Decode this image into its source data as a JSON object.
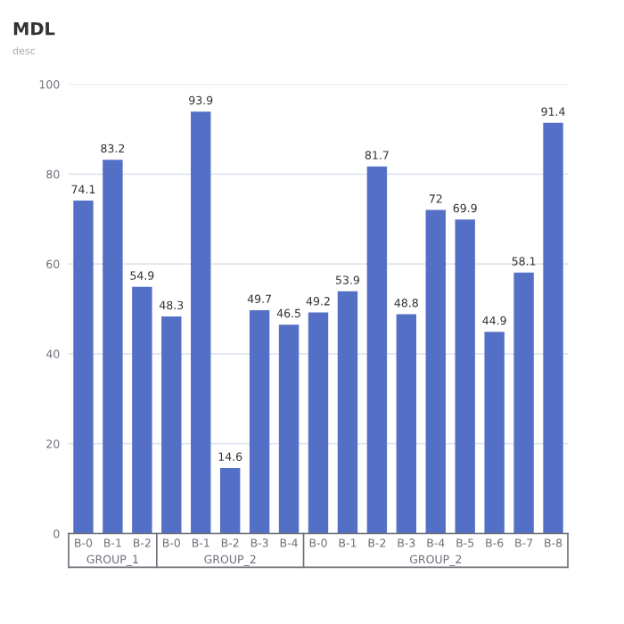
{
  "chart_data": {
    "type": "bar",
    "title": "MDL",
    "subtitle": "desc",
    "categories": [
      "B-0",
      "B-1",
      "B-2",
      "B-0",
      "B-1",
      "B-2",
      "B-3",
      "B-4",
      "B-0",
      "B-1",
      "B-2",
      "B-3",
      "B-4",
      "B-5",
      "B-6",
      "B-7",
      "B-8"
    ],
    "values": [
      74.1,
      83.2,
      54.9,
      48.3,
      93.9,
      14.6,
      49.7,
      46.5,
      49.2,
      53.9,
      81.7,
      48.8,
      72,
      69.9,
      44.9,
      58.1,
      91.4
    ],
    "color": "#5470c6",
    "ylim": [
      0,
      100
    ],
    "yticks": [
      0,
      20,
      40,
      60,
      80,
      100
    ],
    "grid": "y",
    "data_labels": true,
    "annotations": [
      "GROUP_1",
      "GROUP_2",
      "GROUP_2"
    ]
  }
}
